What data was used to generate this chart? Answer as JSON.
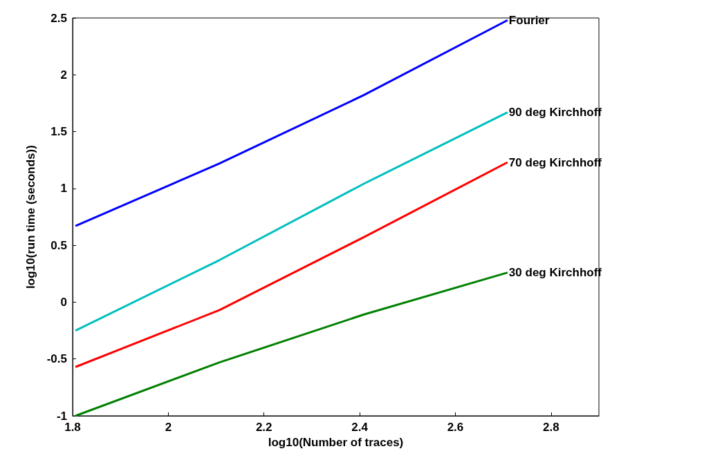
{
  "chart_data": {
    "type": "line",
    "xlabel": "log10(Number of traces)",
    "ylabel": "log10(run time (seconds))",
    "x": [
      1.806,
      2.107,
      2.408,
      2.709
    ],
    "series": [
      {
        "name": "Fourier",
        "color": "#0000ff",
        "values": [
          0.67,
          1.22,
          1.82,
          2.48
        ]
      },
      {
        "name": "90 deg Kirchhoff",
        "color": "#00bfbf",
        "values": [
          -0.25,
          0.37,
          1.04,
          1.67
        ]
      },
      {
        "name": "70 deg Kirchhoff",
        "color": "#ff0000",
        "values": [
          -0.57,
          -0.07,
          0.57,
          1.23
        ]
      },
      {
        "name": "30 deg Kirchhoff",
        "color": "#008000",
        "values": [
          -1.0,
          -0.53,
          -0.11,
          0.26
        ]
      }
    ],
    "xlim": [
      1.8,
      2.9
    ],
    "xticks": [
      1.8,
      2,
      2.2,
      2.4,
      2.6,
      2.8
    ],
    "ylim": [
      -1,
      2.5
    ],
    "yticks": [
      -1,
      -0.5,
      0,
      0.5,
      1,
      1.5,
      2,
      2.5
    ],
    "grid": false,
    "legend": false,
    "marker": "none",
    "line_style": "solid"
  }
}
